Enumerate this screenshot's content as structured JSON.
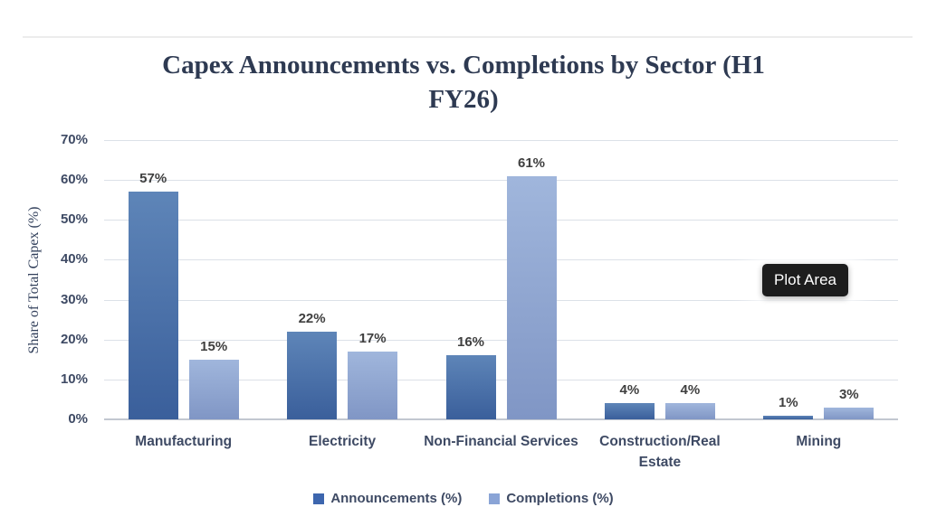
{
  "chart_data": {
    "type": "bar",
    "title": "Capex Announcements vs. Completions by Sector (H1 FY26)",
    "ylabel": "Share of Total Capex (%)",
    "xlabel": "",
    "ylim": [
      0,
      70
    ],
    "yticks": [
      0,
      10,
      20,
      30,
      40,
      50,
      60,
      70
    ],
    "ytick_suffix": "%",
    "grid": true,
    "legend_position": "bottom",
    "categories": [
      "Manufacturing",
      "Electricity",
      "Non-Financial Services",
      "Construction/Real Estate",
      "Mining"
    ],
    "series": [
      {
        "name": "Announcements (%)",
        "values": [
          57,
          22,
          16,
          4,
          1
        ],
        "color_top": "#5e85b8",
        "color_bottom": "#3a5f9b",
        "legend_color": "#3d66ae"
      },
      {
        "name": "Completions (%)",
        "values": [
          15,
          17,
          61,
          4,
          3
        ],
        "color_top": "#a0b6dc",
        "color_bottom": "#8096c5",
        "legend_color": "#8aa4d6"
      }
    ],
    "data_label_suffix": "%"
  },
  "tooltip": {
    "label": "Plot Area"
  },
  "colors": {
    "title": "#2e3a52",
    "axis_title": "#33415c",
    "axis_text": "#3e4a64",
    "data_label": "#3f3f3f",
    "gridline": "#dce1e8",
    "axis_line": "#c2c7d0",
    "divider": "#ececec",
    "tooltip_bg": "#1d1d1d",
    "tooltip_text": "#ffffff",
    "background": "#ffffff"
  }
}
